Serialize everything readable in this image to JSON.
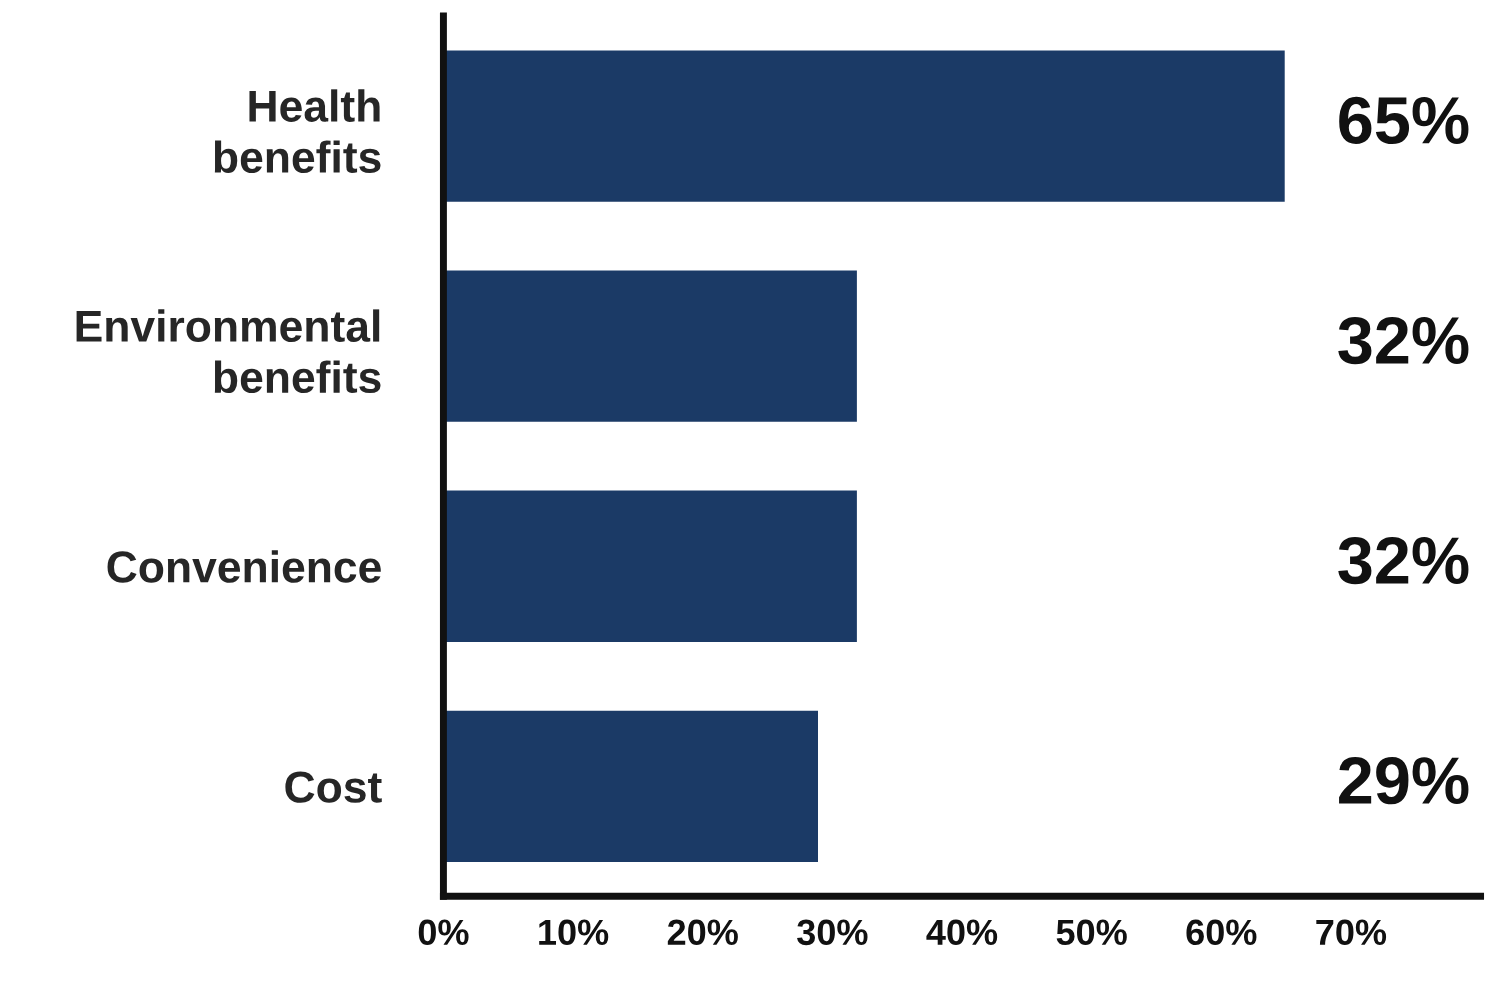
{
  "chart_data": {
    "type": "bar",
    "orientation": "horizontal",
    "categories": [
      "Health\nbenefits",
      "Environmental\nbenefits",
      "Convenience",
      "Cost"
    ],
    "values": [
      65,
      32,
      32,
      29
    ],
    "color": "#1b3a66",
    "value_labels": [
      "65%",
      "32%",
      "32%",
      "29%"
    ],
    "xlim": [
      0,
      80
    ],
    "xticks": [
      {
        "value": 0,
        "label": "0%"
      },
      {
        "value": 10,
        "label": "10%"
      },
      {
        "value": 20,
        "label": "20%"
      },
      {
        "value": 30,
        "label": "30%"
      },
      {
        "value": 40,
        "label": "40%"
      },
      {
        "value": 50,
        "label": "50%"
      },
      {
        "value": 60,
        "label": "60%"
      },
      {
        "value": 70,
        "label": "70%"
      }
    ],
    "grid": false,
    "legend": false
  }
}
